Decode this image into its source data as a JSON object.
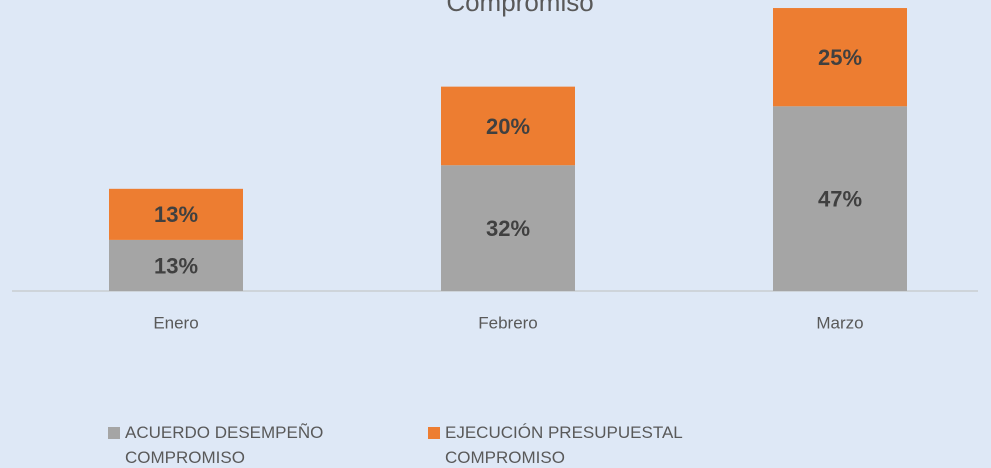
{
  "chart_data": {
    "type": "stacked_bar",
    "title": "Compromiso",
    "categories": [
      "Enero",
      "Febrero",
      "Marzo"
    ],
    "series": [
      {
        "name": "ACUERDO DESEMPEÑO COMPROMISO",
        "color": "#a5a5a5",
        "values": [
          13,
          32,
          47
        ],
        "value_labels": [
          "13%",
          "32%",
          "47%"
        ]
      },
      {
        "name": "EJECUCIÓN PRESUPUESTAL COMPROMISO",
        "color": "#ed7d31",
        "values": [
          13,
          20,
          25
        ],
        "value_labels": [
          "13%",
          "20%",
          "25%"
        ]
      }
    ],
    "legend": "bottom"
  }
}
